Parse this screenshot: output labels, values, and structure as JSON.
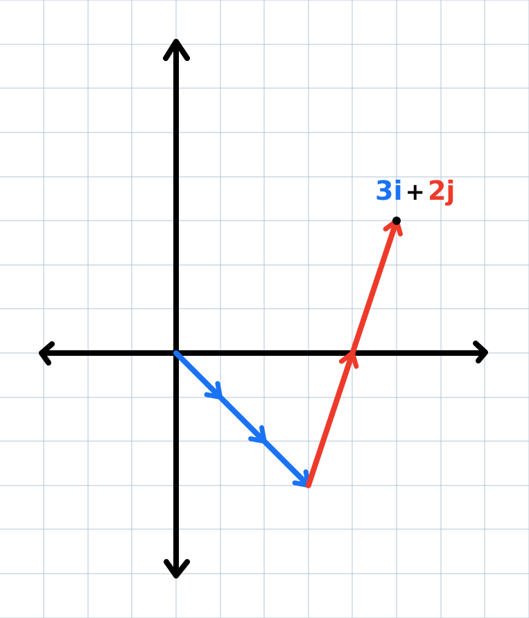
{
  "diagram": {
    "label_i": "3i",
    "label_plus": "+",
    "label_j": "2j"
  },
  "vectors": [
    {
      "name": "i-component",
      "from": [
        0,
        0
      ],
      "to": [
        3,
        -3
      ],
      "color": "#1a73f5",
      "ticks": [
        [
          1,
          -1
        ],
        [
          2,
          -2
        ]
      ]
    },
    {
      "name": "j-component",
      "from": [
        3,
        -3
      ],
      "to": [
        5,
        3
      ],
      "color": "#ee3a2a",
      "ticks": [
        [
          4,
          0
        ]
      ]
    }
  ],
  "endpoint": [
    5,
    3
  ],
  "colors": {
    "grid": "#b3c3d6",
    "axis": "#000000",
    "blue": "#1a73f5",
    "red": "#ee3a2a"
  }
}
